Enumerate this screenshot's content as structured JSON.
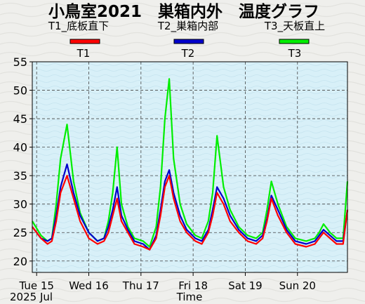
{
  "chart_data": {
    "type": "line",
    "title": "小鳥室2021　巣箱内外　温度グラフ",
    "xlabel": "Time",
    "date_label": "2025 Jul",
    "ylabel": "",
    "ylim": [
      18,
      55
    ],
    "yticks": [
      20,
      25,
      30,
      35,
      40,
      45,
      50,
      55
    ],
    "xlim": [
      "2025-07-14T22:00",
      "2025-07-20T23:00"
    ],
    "x_ticks": [
      {
        "label": "Tue 15",
        "x": "2025-07-15T00:00"
      },
      {
        "label": "Wed 16",
        "x": "2025-07-16T00:00"
      },
      {
        "label": "Thu 17",
        "x": "2025-07-17T00:00"
      },
      {
        "label": "Fri 18",
        "x": "2025-07-18T00:00"
      },
      {
        "label": "Sat 19",
        "x": "2025-07-19T00:00"
      },
      {
        "label": "Sun 20",
        "x": "2025-07-20T00:00"
      }
    ],
    "grid": true,
    "legend": {
      "placement": "top",
      "descriptions": [
        "T1_底板直下",
        "T2_巣箱内部",
        "T3_天板直上"
      ]
    },
    "colors": {
      "T1": "#ff0000",
      "T2": "#0000cc",
      "T3": "#00ee00",
      "plot_bg": "#d8f0f8"
    },
    "series": [
      {
        "name": "T1",
        "x": [
          "2025-07-14T22:00",
          "2025-07-15T02:00",
          "2025-07-15T05:00",
          "2025-07-15T07:00",
          "2025-07-15T09:00",
          "2025-07-15T11:00",
          "2025-07-15T14:00",
          "2025-07-15T17:00",
          "2025-07-15T20:00",
          "2025-07-16T00:00",
          "2025-07-16T04:00",
          "2025-07-16T07:00",
          "2025-07-16T09:00",
          "2025-07-16T11:00",
          "2025-07-16T13:00",
          "2025-07-16T15:00",
          "2025-07-16T18:00",
          "2025-07-16T21:00",
          "2025-07-17T01:00",
          "2025-07-17T04:00",
          "2025-07-17T07:00",
          "2025-07-17T09:00",
          "2025-07-17T11:00",
          "2025-07-17T13:00",
          "2025-07-17T15:00",
          "2025-07-17T18:00",
          "2025-07-17T21:00",
          "2025-07-18T01:00",
          "2025-07-18T04:00",
          "2025-07-18T07:00",
          "2025-07-18T09:00",
          "2025-07-18T11:00",
          "2025-07-18T14:00",
          "2025-07-18T17:00",
          "2025-07-18T21:00",
          "2025-07-19T01:00",
          "2025-07-19T05:00",
          "2025-07-19T08:00",
          "2025-07-19T10:00",
          "2025-07-19T12:00",
          "2025-07-19T15:00",
          "2025-07-19T19:00",
          "2025-07-19T23:00",
          "2025-07-20T04:00",
          "2025-07-20T08:00",
          "2025-07-20T10:00",
          "2025-07-20T12:00",
          "2025-07-20T15:00",
          "2025-07-20T18:00",
          "2025-07-20T21:00",
          "2025-07-20T23:00"
        ],
        "values": [
          26,
          24,
          23,
          23.5,
          27,
          32,
          35,
          31,
          27,
          24,
          23,
          23.5,
          25,
          28,
          31,
          27,
          25,
          23,
          22.5,
          22,
          24,
          28,
          33,
          35,
          31,
          27,
          25,
          23.5,
          23,
          25,
          28,
          32,
          30,
          27,
          25,
          23.5,
          23,
          24,
          27,
          31,
          28,
          25,
          23,
          22.5,
          23,
          24,
          25,
          24,
          23,
          23,
          29
        ]
      },
      {
        "name": "T2",
        "x": [
          "2025-07-14T22:00",
          "2025-07-15T02:00",
          "2025-07-15T05:00",
          "2025-07-15T07:00",
          "2025-07-15T09:00",
          "2025-07-15T11:00",
          "2025-07-15T14:00",
          "2025-07-15T17:00",
          "2025-07-15T20:00",
          "2025-07-16T00:00",
          "2025-07-16T04:00",
          "2025-07-16T07:00",
          "2025-07-16T09:00",
          "2025-07-16T11:00",
          "2025-07-16T13:00",
          "2025-07-16T15:00",
          "2025-07-16T18:00",
          "2025-07-16T21:00",
          "2025-07-17T01:00",
          "2025-07-17T04:00",
          "2025-07-17T07:00",
          "2025-07-17T09:00",
          "2025-07-17T11:00",
          "2025-07-17T13:00",
          "2025-07-17T15:00",
          "2025-07-17T18:00",
          "2025-07-17T21:00",
          "2025-07-18T01:00",
          "2025-07-18T04:00",
          "2025-07-18T07:00",
          "2025-07-18T09:00",
          "2025-07-18T11:00",
          "2025-07-18T14:00",
          "2025-07-18T17:00",
          "2025-07-18T21:00",
          "2025-07-19T01:00",
          "2025-07-19T05:00",
          "2025-07-19T08:00",
          "2025-07-19T10:00",
          "2025-07-19T12:00",
          "2025-07-19T15:00",
          "2025-07-19T19:00",
          "2025-07-19T23:00",
          "2025-07-20T04:00",
          "2025-07-20T08:00",
          "2025-07-20T10:00",
          "2025-07-20T12:00",
          "2025-07-20T15:00",
          "2025-07-20T18:00",
          "2025-07-20T21:00",
          "2025-07-20T23:00"
        ],
        "values": [
          26,
          24,
          23.5,
          24,
          28,
          33,
          37,
          32,
          28,
          25,
          23.5,
          24,
          26,
          29,
          33,
          28,
          25.5,
          23.5,
          23,
          22,
          24.5,
          29,
          34,
          36,
          32,
          28,
          25.5,
          24,
          23.5,
          25.5,
          29,
          33,
          31,
          28,
          25.5,
          24,
          23.5,
          24.5,
          27.5,
          31.5,
          29,
          25.5,
          23.5,
          23,
          23.5,
          24.5,
          25.5,
          24.5,
          23.5,
          23.5,
          29
        ]
      },
      {
        "name": "T3",
        "x": [
          "2025-07-14T22:00",
          "2025-07-15T02:00",
          "2025-07-15T05:00",
          "2025-07-15T07:00",
          "2025-07-15T09:00",
          "2025-07-15T11:00",
          "2025-07-15T14:00",
          "2025-07-15T17:00",
          "2025-07-15T20:00",
          "2025-07-16T00:00",
          "2025-07-16T04:00",
          "2025-07-16T07:00",
          "2025-07-16T09:00",
          "2025-07-16T11:00",
          "2025-07-16T13:00",
          "2025-07-16T15:00",
          "2025-07-16T18:00",
          "2025-07-16T21:00",
          "2025-07-17T01:00",
          "2025-07-17T04:00",
          "2025-07-17T07:00",
          "2025-07-17T09:00",
          "2025-07-17T11:00",
          "2025-07-17T13:00",
          "2025-07-17T15:00",
          "2025-07-17T18:00",
          "2025-07-17T21:00",
          "2025-07-18T01:00",
          "2025-07-18T04:00",
          "2025-07-18T07:00",
          "2025-07-18T09:00",
          "2025-07-18T11:00",
          "2025-07-18T14:00",
          "2025-07-18T17:00",
          "2025-07-18T21:00",
          "2025-07-19T01:00",
          "2025-07-19T05:00",
          "2025-07-19T08:00",
          "2025-07-19T10:00",
          "2025-07-19T12:00",
          "2025-07-19T15:00",
          "2025-07-19T19:00",
          "2025-07-19T23:00",
          "2025-07-20T04:00",
          "2025-07-20T08:00",
          "2025-07-20T10:00",
          "2025-07-20T12:00",
          "2025-07-20T15:00",
          "2025-07-20T18:00",
          "2025-07-20T21:00",
          "2025-07-20T23:00"
        ],
        "values": [
          27,
          24.5,
          23.5,
          24,
          30,
          38,
          44,
          34,
          28.5,
          25,
          23.5,
          24,
          27,
          32,
          40,
          30,
          26,
          24,
          23.5,
          22.5,
          26,
          33,
          45,
          52,
          38,
          30,
          26.5,
          24.5,
          24,
          27,
          32,
          42,
          33,
          29,
          26,
          24.5,
          24,
          25,
          29,
          34,
          30,
          26,
          24,
          23.5,
          24,
          25,
          26.5,
          25,
          24,
          24,
          34
        ]
      }
    ]
  }
}
